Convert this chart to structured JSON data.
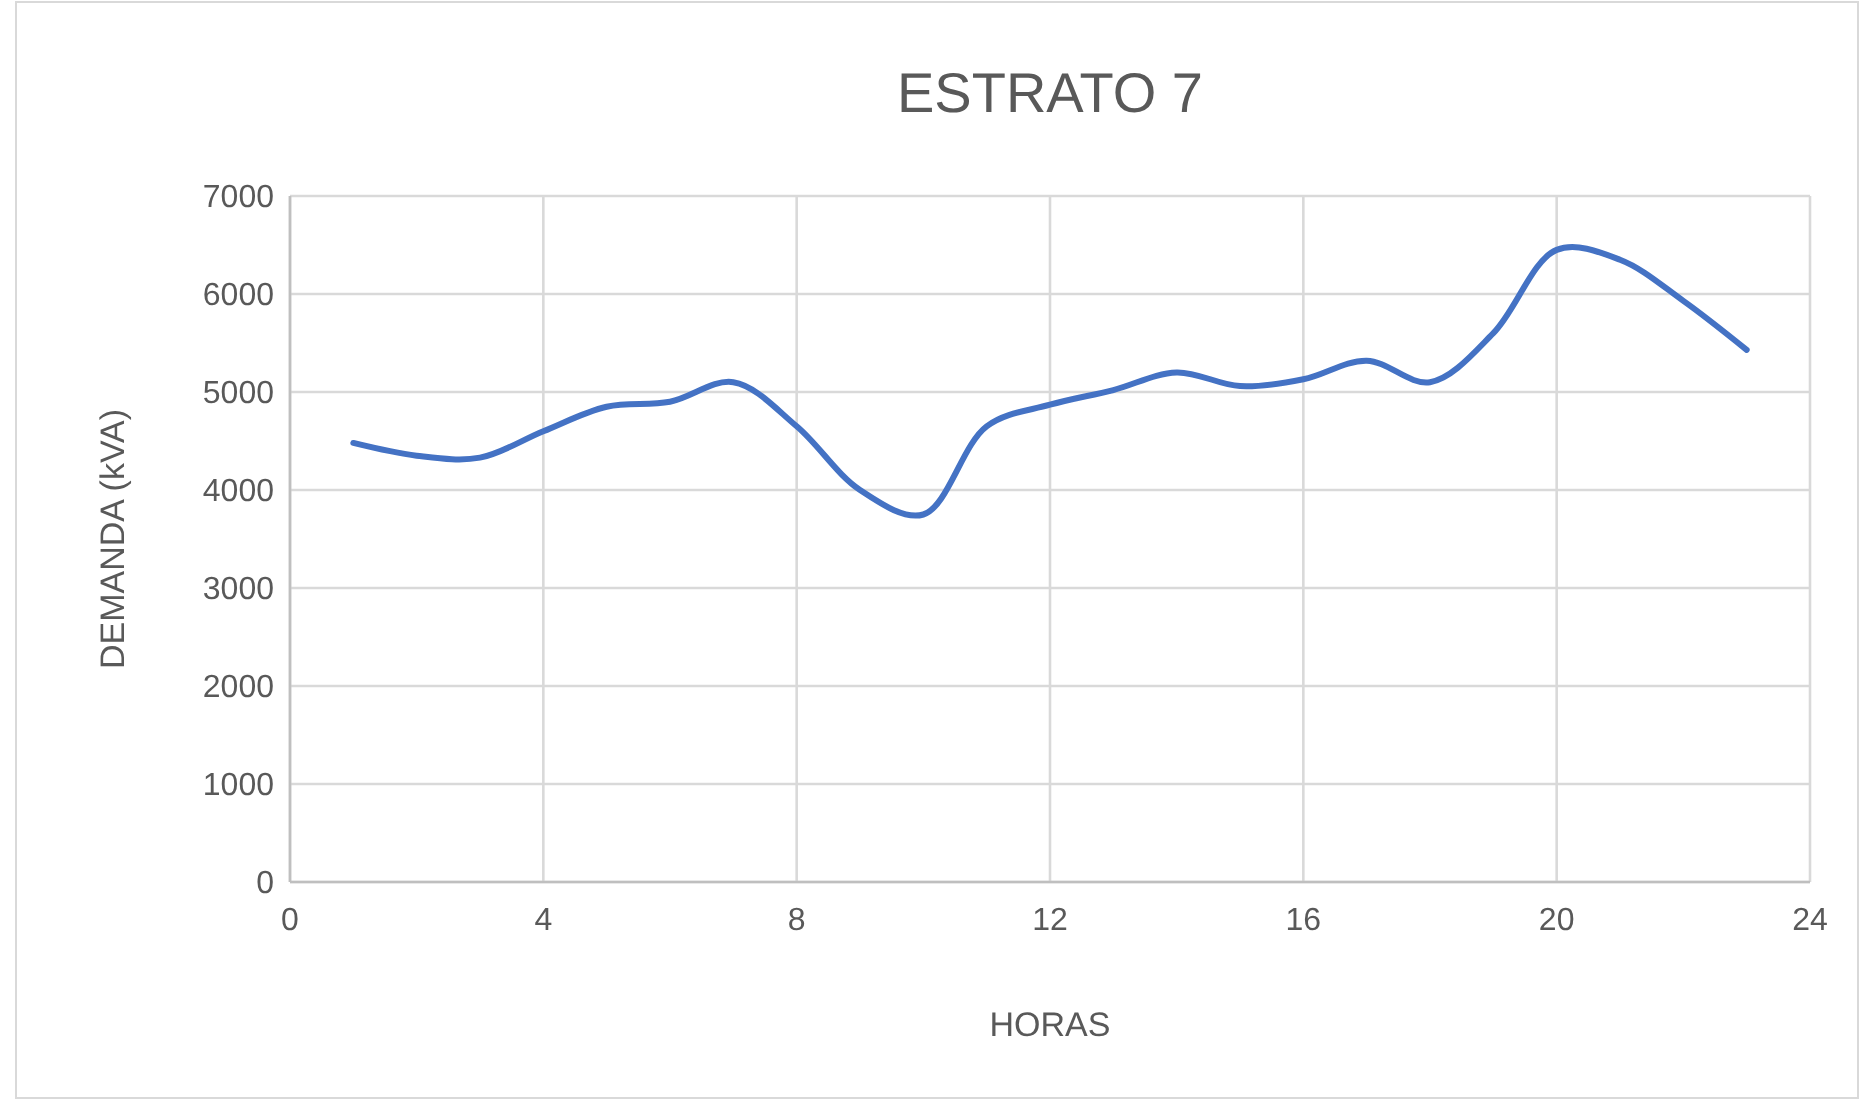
{
  "chart_data": {
    "type": "line",
    "title": "ESTRATO 7",
    "xlabel": "HORAS",
    "ylabel": "DEMANDA (kVA)",
    "x": [
      1,
      2,
      3,
      4,
      5,
      6,
      7,
      8,
      9,
      10,
      11,
      12,
      13,
      14,
      15,
      16,
      17,
      18,
      19,
      20,
      21,
      22,
      23
    ],
    "series": [
      {
        "color": "#4472c4",
        "values": [
          4480,
          4350,
          4330,
          4600,
          4850,
          4900,
          5100,
          4650,
          4000,
          3750,
          4650,
          4870,
          5020,
          5200,
          5060,
          5130,
          5320,
          5100,
          5600,
          6450,
          6350,
          5930,
          5430
        ]
      }
    ],
    "xlim": [
      0,
      24
    ],
    "xticks": [
      0,
      4,
      8,
      12,
      16,
      20,
      24
    ],
    "ylim": [
      0,
      7000
    ],
    "yticks": [
      0,
      1000,
      2000,
      3000,
      4000,
      5000,
      6000,
      7000
    ],
    "grid": true,
    "marker": "none",
    "line_style": "solid"
  }
}
